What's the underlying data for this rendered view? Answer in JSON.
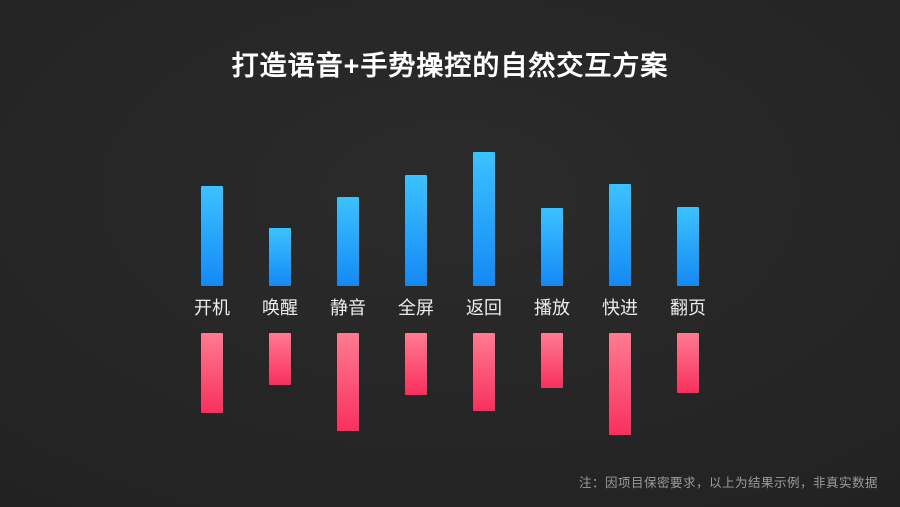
{
  "slide": {
    "title": "打造语音+手势操控的自然交互方案",
    "footnote": "注：因项目保密要求，以上为结果示例，非真实数据"
  },
  "colors": {
    "background": "#232323",
    "title_text": "#ffffff",
    "label_text": "#ececec",
    "footnote_text": "#9b9b9b",
    "blue_bar_top": "#3cc2ff",
    "blue_bar_bottom": "#1489f5",
    "pink_bar_top": "#ff7b90",
    "pink_bar_bottom": "#f8305f"
  },
  "chart_data": {
    "type": "bar",
    "orientation": "diverging-vertical",
    "title": "打造语音+手势操控的自然交互方案",
    "categories": [
      "开机",
      "唤醒",
      "静音",
      "全屏",
      "返回",
      "播放",
      "快进",
      "翻页"
    ],
    "series": [
      {
        "name": "upper-blue-bars",
        "direction": "up",
        "values": [
          100,
          58,
          89,
          111,
          134,
          78,
          102,
          79
        ]
      },
      {
        "name": "lower-pink-bars",
        "direction": "down",
        "values": [
          80,
          52,
          98,
          62,
          78,
          55,
          102,
          60
        ]
      }
    ],
    "value_unit": "relative (illustrative, not real data)",
    "ylim_up": [
      0,
      136
    ],
    "ylim_down": [
      0,
      104
    ],
    "grid": false,
    "legend": false,
    "annotation": "注：因项目保密要求，以上为结果示例，非真实数据"
  }
}
